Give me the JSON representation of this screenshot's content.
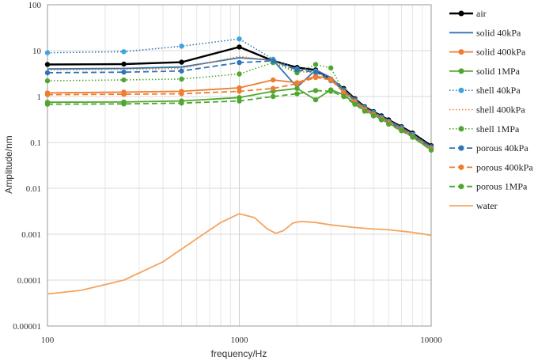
{
  "chart_data": {
    "type": "line",
    "xscale": "log",
    "yscale": "log",
    "xlim": [
      100,
      10000
    ],
    "ylim": [
      1e-05,
      100
    ],
    "xlabel": "frequency/Hz",
    "ylabel": "Amplitude/nm",
    "x_ticks": [
      "100",
      "1000",
      "10000"
    ],
    "y_ticks": [
      "100",
      "10",
      "1",
      "0.1",
      "0.01",
      "0.001",
      "0.0001",
      "0.00001"
    ],
    "legend_position": "right",
    "series": [
      {
        "name": "air",
        "color": "#000000",
        "dash": "solid",
        "width": 2.4,
        "marker": true,
        "x": [
          100,
          250,
          500,
          1000,
          1500,
          2000,
          2500,
          3000,
          3500,
          4000,
          4500,
          5000,
          5500,
          6000,
          7000,
          8000,
          10000
        ],
        "y": [
          5,
          5.1,
          5.6,
          12,
          6,
          4.3,
          3.8,
          2.4,
          1.5,
          0.9,
          0.6,
          0.47,
          0.38,
          0.31,
          0.22,
          0.16,
          0.085
        ]
      },
      {
        "name": "solid 40kPa",
        "color": "#2E75B6",
        "dash": "solid",
        "width": 1.8,
        "marker": false,
        "x": [
          100,
          250,
          500,
          1000,
          1500,
          2000,
          2500,
          3000,
          3500,
          4000,
          4500,
          5000,
          5500,
          6000,
          7000,
          8000,
          10000
        ],
        "y": [
          4,
          4.1,
          4.4,
          7,
          6.2,
          1.6,
          3.8,
          2.6,
          1.4,
          0.85,
          0.58,
          0.45,
          0.37,
          0.3,
          0.21,
          0.15,
          0.08
        ]
      },
      {
        "name": "solid 400kPa",
        "color": "#ED7D31",
        "dash": "solid",
        "width": 1.8,
        "marker": true,
        "x": [
          100,
          250,
          500,
          1000,
          1500,
          2000,
          2500,
          3000,
          3500,
          4000,
          4500,
          5000,
          5500,
          6000,
          7000,
          8000,
          10000
        ],
        "y": [
          1.2,
          1.25,
          1.3,
          1.55,
          2.3,
          2,
          2.8,
          2.4,
          1.3,
          0.8,
          0.55,
          0.42,
          0.34,
          0.28,
          0.2,
          0.14,
          0.075
        ]
      },
      {
        "name": "solid 1MPa",
        "color": "#4EA72E",
        "dash": "solid",
        "width": 1.8,
        "marker": true,
        "x": [
          100,
          250,
          500,
          1000,
          1500,
          2000,
          2500,
          3000,
          3500,
          4000,
          4500,
          5000,
          5500,
          6000,
          7000,
          8000,
          10000
        ],
        "y": [
          0.75,
          0.76,
          0.8,
          0.95,
          1.3,
          1.5,
          0.85,
          1.4,
          1.1,
          0.7,
          0.5,
          0.4,
          0.32,
          0.26,
          0.19,
          0.13,
          0.07
        ]
      },
      {
        "name": "shell 40kPa",
        "color": "#2E75B6",
        "dash": "1.5,2.5",
        "width": 1.6,
        "marker": true,
        "marker_color": "#3DA5DE",
        "x": [
          100,
          250,
          500,
          1000,
          1500,
          2000,
          2500,
          3000,
          3500,
          4000,
          4500,
          5000,
          5500,
          6000,
          7000,
          8000,
          10000
        ],
        "y": [
          9,
          9.5,
          12.5,
          18,
          6.5,
          4,
          3.6,
          2.2,
          1.4,
          0.85,
          0.58,
          0.45,
          0.36,
          0.29,
          0.21,
          0.15,
          0.08
        ]
      },
      {
        "name": "shell 400kPa",
        "color": "#ED7D31",
        "dash": "1.5,2.5",
        "width": 1.6,
        "marker": false,
        "x": [
          100,
          250,
          500,
          1000,
          1500,
          2000,
          2500,
          3000,
          3500,
          4000,
          4500,
          5000,
          5500,
          6000,
          7000,
          8000,
          10000
        ],
        "y": [
          3.8,
          3.9,
          4.1,
          7.5,
          6,
          3.5,
          3.3,
          2.5,
          1.4,
          0.85,
          0.57,
          0.44,
          0.36,
          0.29,
          0.21,
          0.15,
          0.078
        ]
      },
      {
        "name": "shell 1MPa",
        "color": "#4EA72E",
        "dash": "1.5,2.5",
        "width": 1.6,
        "marker": true,
        "x": [
          100,
          250,
          500,
          1000,
          1500,
          2000,
          2500,
          3000,
          3500,
          4000,
          4500,
          5000,
          5500,
          6000,
          7000,
          8000,
          10000
        ],
        "y": [
          2.2,
          2.3,
          2.4,
          3.1,
          5.5,
          3.3,
          5,
          4.2,
          1.3,
          0.78,
          0.53,
          0.41,
          0.33,
          0.27,
          0.19,
          0.14,
          0.072
        ]
      },
      {
        "name": "porous 40kPa",
        "color": "#2E75B6",
        "dash": "7,4",
        "width": 1.8,
        "marker": true,
        "x": [
          100,
          250,
          500,
          1000,
          1500,
          2000,
          2500,
          3000,
          3500,
          4000,
          4500,
          5000,
          5500,
          6000,
          7000,
          8000,
          10000
        ],
        "y": [
          3.3,
          3.4,
          3.6,
          5.5,
          6,
          3.8,
          3.4,
          2.3,
          1.35,
          0.82,
          0.56,
          0.43,
          0.35,
          0.28,
          0.2,
          0.14,
          0.077
        ]
      },
      {
        "name": "porous 400kPa",
        "color": "#ED7D31",
        "dash": "7,4",
        "width": 1.8,
        "marker": true,
        "x": [
          100,
          250,
          500,
          1000,
          1500,
          2000,
          2500,
          3000,
          3500,
          4000,
          4500,
          5000,
          5500,
          6000,
          7000,
          8000,
          10000
        ],
        "y": [
          1.1,
          1.12,
          1.15,
          1.3,
          1.5,
          1.9,
          2.6,
          2.3,
          1.25,
          0.78,
          0.53,
          0.41,
          0.33,
          0.27,
          0.19,
          0.135,
          0.073
        ]
      },
      {
        "name": "porous 1MPa",
        "color": "#4EA72E",
        "dash": "7,4",
        "width": 1.8,
        "marker": true,
        "x": [
          100,
          250,
          500,
          1000,
          1500,
          2000,
          2500,
          3000,
          3500,
          4000,
          4500,
          5000,
          5500,
          6000,
          7000,
          8000,
          10000
        ],
        "y": [
          0.68,
          0.69,
          0.72,
          0.8,
          1,
          1.15,
          1.35,
          1.3,
          1,
          0.68,
          0.48,
          0.38,
          0.31,
          0.25,
          0.18,
          0.13,
          0.068
        ]
      },
      {
        "name": "water",
        "color": "#F4A460",
        "dash": "solid",
        "width": 1.8,
        "marker": false,
        "x": [
          100,
          150,
          250,
          400,
          600,
          800,
          1000,
          1200,
          1400,
          1550,
          1700,
          1900,
          2100,
          2500,
          3000,
          4000,
          5000,
          6000,
          8000,
          10000
        ],
        "y": [
          5e-05,
          6e-05,
          0.0001,
          0.00025,
          0.0008,
          0.0018,
          0.0028,
          0.0023,
          0.0013,
          0.00105,
          0.0012,
          0.00175,
          0.0019,
          0.0018,
          0.0016,
          0.0014,
          0.0013,
          0.00125,
          0.0011,
          0.00095
        ]
      }
    ]
  }
}
